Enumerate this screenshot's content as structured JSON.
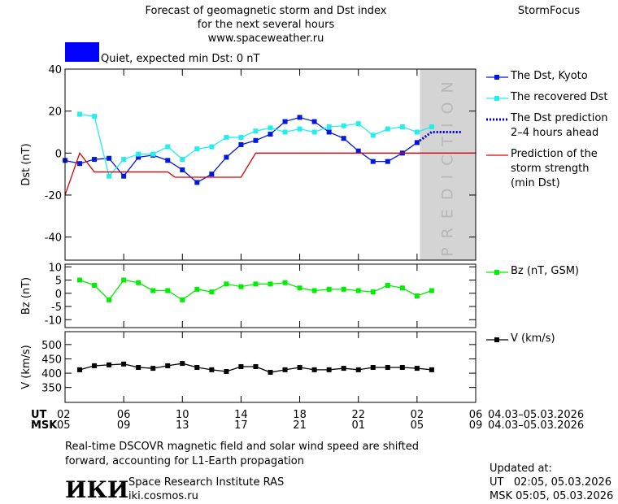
{
  "header": {
    "title_lines": [
      "Forecast of geomagnetic storm and Dst index",
      "for the next several hours",
      "www.spaceweather.ru"
    ],
    "brand": "StormFocus"
  },
  "status": {
    "label": "Quiet, expected min Dst: 0 nT",
    "color": "#0000ff"
  },
  "chart_data": [
    {
      "type": "line",
      "ylabel": "Dst (nT)",
      "xlim": [
        0,
        28
      ],
      "ylim": [
        -51,
        40
      ],
      "yticks": [
        40,
        20,
        0,
        -20,
        -40
      ],
      "band": {
        "xlim": [
          24.2,
          28
        ],
        "label": "PREDICTION",
        "color": "#d4d4d4"
      },
      "series": [
        {
          "name": "The Dst, Kyoto",
          "color": "#0018e0",
          "marker": "square",
          "x": [
            0,
            1,
            2,
            3,
            4,
            5,
            6,
            7,
            8,
            9,
            10,
            11,
            12,
            13,
            14,
            15,
            16,
            17,
            18,
            19,
            20,
            21,
            22,
            23,
            24
          ],
          "values": [
            -3.5,
            -5,
            -3,
            -2.5,
            -11,
            -2,
            -1,
            -3.5,
            -8,
            -14,
            -10,
            -2,
            4,
            6,
            9,
            15,
            17,
            15,
            10,
            7,
            1,
            -4,
            -4,
            0,
            5
          ]
        },
        {
          "name": "The recovered Dst",
          "color": "#22eeee",
          "marker": "square",
          "x": [
            1,
            2,
            3,
            4,
            5,
            6,
            7,
            8,
            9,
            10,
            11,
            12,
            13,
            14,
            15,
            16,
            17,
            18,
            19,
            20,
            21,
            22,
            23,
            24,
            25
          ],
          "values": [
            18.5,
            17.5,
            -11,
            -3,
            -0.5,
            -0.5,
            3,
            -3,
            2,
            3,
            7.5,
            7.5,
            10.5,
            12,
            10,
            11.5,
            10,
            12.5,
            13,
            14,
            8.5,
            11.5,
            12.5,
            10,
            12.5
          ]
        },
        {
          "name": "The Dst prediction\n2–4 hours ahead",
          "color": "#0000cc",
          "style": "dotted",
          "x": [
            24,
            25,
            26,
            27
          ],
          "values": [
            5,
            10,
            10,
            10
          ]
        },
        {
          "name": "Prediction of the\nstorm strength\n(min Dst)",
          "color": "#e00000",
          "x": [
            0,
            1,
            2,
            7,
            7.5,
            12,
            13,
            28
          ],
          "values": [
            -20,
            0,
            -9,
            -9,
            -11.5,
            -11.5,
            0,
            0
          ]
        }
      ]
    },
    {
      "type": "line",
      "ylabel": "Bz (nT)",
      "xlim": [
        0,
        28
      ],
      "ylim": [
        -13,
        11
      ],
      "yticks": [
        10,
        5,
        0,
        -5,
        -10
      ],
      "series": [
        {
          "name": "Bz (nT, GSM)",
          "color": "#00ee00",
          "marker": "square",
          "x": [
            1,
            2,
            3,
            4,
            5,
            6,
            7,
            8,
            9,
            10,
            11,
            12,
            13,
            14,
            15,
            16,
            17,
            18,
            19,
            20,
            21,
            22,
            23,
            24,
            25
          ],
          "values": [
            5,
            3,
            -2.5,
            5,
            4,
            1,
            1,
            -2.5,
            1.5,
            0.5,
            3.5,
            2.5,
            3.5,
            3.5,
            4,
            2,
            1,
            1.5,
            1.5,
            1,
            0.5,
            3,
            2,
            -1,
            1
          ]
        }
      ]
    },
    {
      "type": "line",
      "ylabel": "V (km/s)",
      "xlim": [
        0,
        28
      ],
      "ylim": [
        298,
        545
      ],
      "yticks": [
        500,
        450,
        400,
        350
      ],
      "xlabel": "UT",
      "x2label": "MSK",
      "xticks": [
        {
          "value": 0,
          "label": "02"
        },
        {
          "value": 4,
          "label": "06"
        },
        {
          "value": 8,
          "label": "10"
        },
        {
          "value": 12,
          "label": "14"
        },
        {
          "value": 16,
          "label": "18"
        },
        {
          "value": 20,
          "label": "22"
        },
        {
          "value": 24,
          "label": "02"
        },
        {
          "value": 28,
          "label": "06"
        }
      ],
      "x2ticks": [
        {
          "value": 0,
          "label": "05"
        },
        {
          "value": 4,
          "label": "09"
        },
        13,
        17,
        21,
        {
          "value": 20,
          "label": "01"
        },
        {
          "value": 24,
          "label": "05"
        },
        {
          "value": 28,
          "label": "09"
        }
      ],
      "x_date_range": "04.03–05.03.2026",
      "x2_date_range": "04.03–05.03.2026",
      "series": [
        {
          "name": "V (km/s)",
          "color": "#000000",
          "marker": "square",
          "x": [
            1,
            2,
            3,
            4,
            5,
            6,
            7,
            8,
            9,
            10,
            11,
            12,
            13,
            14,
            15,
            16,
            17,
            18,
            19,
            20,
            21,
            22,
            23,
            24,
            25
          ],
          "values": [
            412,
            426,
            429,
            432,
            420,
            417,
            426,
            434,
            420,
            412,
            406,
            423,
            423,
            403,
            412,
            420,
            412,
            412,
            417,
            412,
            420,
            420,
            420,
            417,
            412
          ]
        }
      ]
    }
  ],
  "footer": {
    "note_lines": [
      "Real-time DSCOVR magnetic field and solar wind speed are shifted",
      "forward, accounting for L1-Earth propagation"
    ],
    "logo": "ИКИ",
    "institute": "Space Research Institute RAS",
    "site": "iki.cosmos.ru",
    "updated_label": "Updated at:",
    "updated_ut": "UT   02:05, 05.03.2026",
    "updated_msk": "MSK 05:05, 05.03.2026"
  }
}
